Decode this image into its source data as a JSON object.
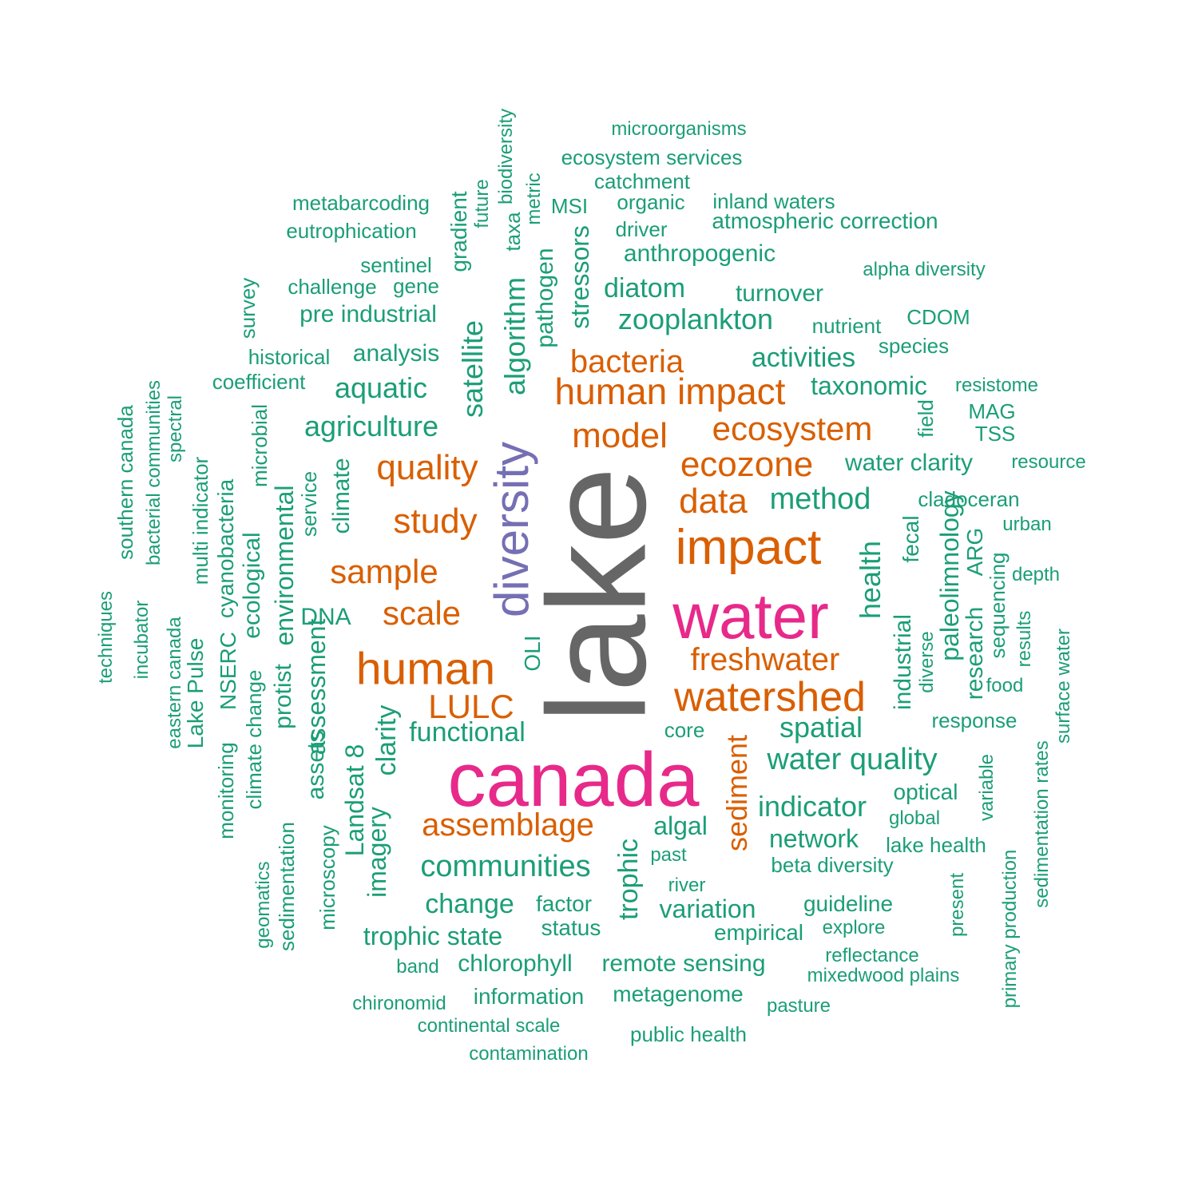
{
  "colors": {
    "lake": "#666666",
    "pink": "#e7298a",
    "purple": "#7570b3",
    "orange": "#d95f02",
    "green": "#1b9e77"
  },
  "words": [
    {
      "text": "lake",
      "color": "lake"
    },
    {
      "text": "canada",
      "color": "pink"
    },
    {
      "text": "water",
      "color": "pink"
    },
    {
      "text": "diversity",
      "color": "purple"
    },
    {
      "text": "impact",
      "color": "orange"
    },
    {
      "text": "human",
      "color": "orange"
    },
    {
      "text": "watershed",
      "color": "orange"
    },
    {
      "text": "human impact",
      "color": "orange"
    },
    {
      "text": "ecozone",
      "color": "orange"
    },
    {
      "text": "data",
      "color": "orange"
    },
    {
      "text": "model",
      "color": "orange"
    },
    {
      "text": "ecosystem",
      "color": "orange"
    },
    {
      "text": "bacteria",
      "color": "orange"
    },
    {
      "text": "quality",
      "color": "orange"
    },
    {
      "text": "study",
      "color": "orange"
    },
    {
      "text": "sample",
      "color": "orange"
    },
    {
      "text": "scale",
      "color": "orange"
    },
    {
      "text": "freshwater",
      "color": "orange"
    },
    {
      "text": "LULC",
      "color": "orange"
    },
    {
      "text": "assemblage",
      "color": "orange"
    },
    {
      "text": "sediment",
      "color": "orange"
    },
    {
      "text": "microorganisms",
      "color": "green"
    },
    {
      "text": "ecosystem services",
      "color": "green"
    },
    {
      "text": "catchment",
      "color": "green"
    },
    {
      "text": "metabarcoding",
      "color": "green"
    },
    {
      "text": "organic",
      "color": "green"
    },
    {
      "text": "inland waters",
      "color": "green"
    },
    {
      "text": "MSI",
      "color": "green"
    },
    {
      "text": "eutrophication",
      "color": "green"
    },
    {
      "text": "driver",
      "color": "green"
    },
    {
      "text": "atmospheric correction",
      "color": "green"
    },
    {
      "text": "anthropogenic",
      "color": "green"
    },
    {
      "text": "sentinel",
      "color": "green"
    },
    {
      "text": "alpha diversity",
      "color": "green"
    },
    {
      "text": "challenge",
      "color": "green"
    },
    {
      "text": "gene",
      "color": "green"
    },
    {
      "text": "diatom",
      "color": "green"
    },
    {
      "text": "turnover",
      "color": "green"
    },
    {
      "text": "pre industrial",
      "color": "green"
    },
    {
      "text": "CDOM",
      "color": "green"
    },
    {
      "text": "zooplankton",
      "color": "green"
    },
    {
      "text": "nutrient",
      "color": "green"
    },
    {
      "text": "species",
      "color": "green"
    },
    {
      "text": "historical",
      "color": "green"
    },
    {
      "text": "analysis",
      "color": "green"
    },
    {
      "text": "activities",
      "color": "green"
    },
    {
      "text": "coefficient",
      "color": "green"
    },
    {
      "text": "aquatic",
      "color": "green"
    },
    {
      "text": "taxonomic",
      "color": "green"
    },
    {
      "text": "resistome",
      "color": "green"
    },
    {
      "text": "MAG",
      "color": "green"
    },
    {
      "text": "agriculture",
      "color": "green"
    },
    {
      "text": "TSS",
      "color": "green"
    },
    {
      "text": "water clarity",
      "color": "green"
    },
    {
      "text": "resource",
      "color": "green"
    },
    {
      "text": "method",
      "color": "green"
    },
    {
      "text": "cladoceran",
      "color": "green"
    },
    {
      "text": "urban",
      "color": "green"
    },
    {
      "text": "depth",
      "color": "green"
    },
    {
      "text": "DNA",
      "color": "green"
    },
    {
      "text": "functional",
      "color": "green"
    },
    {
      "text": "core",
      "color": "green"
    },
    {
      "text": "spatial",
      "color": "green"
    },
    {
      "text": "response",
      "color": "green"
    },
    {
      "text": "food",
      "color": "green"
    },
    {
      "text": "water quality",
      "color": "green"
    },
    {
      "text": "optical",
      "color": "green"
    },
    {
      "text": "indicator",
      "color": "green"
    },
    {
      "text": "global",
      "color": "green"
    },
    {
      "text": "algal",
      "color": "green"
    },
    {
      "text": "network",
      "color": "green"
    },
    {
      "text": "lake health",
      "color": "green"
    },
    {
      "text": "past",
      "color": "green"
    },
    {
      "text": "communities",
      "color": "green"
    },
    {
      "text": "beta diversity",
      "color": "green"
    },
    {
      "text": "river",
      "color": "green"
    },
    {
      "text": "change",
      "color": "green"
    },
    {
      "text": "factor",
      "color": "green"
    },
    {
      "text": "guideline",
      "color": "green"
    },
    {
      "text": "variation",
      "color": "green"
    },
    {
      "text": "status",
      "color": "green"
    },
    {
      "text": "explore",
      "color": "green"
    },
    {
      "text": "trophic state",
      "color": "green"
    },
    {
      "text": "empirical",
      "color": "green"
    },
    {
      "text": "chlorophyll",
      "color": "green"
    },
    {
      "text": "remote sensing",
      "color": "green"
    },
    {
      "text": "reflectance",
      "color": "green"
    },
    {
      "text": "band",
      "color": "green"
    },
    {
      "text": "mixedwood plains",
      "color": "green"
    },
    {
      "text": "information",
      "color": "green"
    },
    {
      "text": "metagenome",
      "color": "green"
    },
    {
      "text": "chironomid",
      "color": "green"
    },
    {
      "text": "pasture",
      "color": "green"
    },
    {
      "text": "continental scale",
      "color": "green"
    },
    {
      "text": "public health",
      "color": "green"
    },
    {
      "text": "contamination",
      "color": "green"
    },
    {
      "text": "biodiversity",
      "color": "green"
    },
    {
      "text": "future",
      "color": "green"
    },
    {
      "text": "metric",
      "color": "green"
    },
    {
      "text": "taxa",
      "color": "green"
    },
    {
      "text": "gradient",
      "color": "green"
    },
    {
      "text": "pathogen",
      "color": "green"
    },
    {
      "text": "stressors",
      "color": "green"
    },
    {
      "text": "algorithm",
      "color": "green"
    },
    {
      "text": "satellite",
      "color": "green"
    },
    {
      "text": "survey",
      "color": "green"
    },
    {
      "text": "field",
      "color": "green"
    },
    {
      "text": "bacterial communities",
      "color": "green"
    },
    {
      "text": "southern canada",
      "color": "green"
    },
    {
      "text": "spectral",
      "color": "green"
    },
    {
      "text": "microbial",
      "color": "green"
    },
    {
      "text": "multi indicator",
      "color": "green"
    },
    {
      "text": "cyanobacteria",
      "color": "green"
    },
    {
      "text": "environmental",
      "color": "green"
    },
    {
      "text": "service",
      "color": "green"
    },
    {
      "text": "climate",
      "color": "green"
    },
    {
      "text": "ecological",
      "color": "green"
    },
    {
      "text": "health",
      "color": "green"
    },
    {
      "text": "fecal",
      "color": "green"
    },
    {
      "text": "paleolimnology",
      "color": "green"
    },
    {
      "text": "ARG",
      "color": "green"
    },
    {
      "text": "sequencing",
      "color": "green"
    },
    {
      "text": "techniques",
      "color": "green"
    },
    {
      "text": "incubator",
      "color": "green"
    },
    {
      "text": "eastern canada",
      "color": "green"
    },
    {
      "text": "Lake Pulse",
      "color": "green"
    },
    {
      "text": "NSERC",
      "color": "green"
    },
    {
      "text": "climate change",
      "color": "green"
    },
    {
      "text": "monitoring",
      "color": "green"
    },
    {
      "text": "protist",
      "color": "green"
    },
    {
      "text": "assessment",
      "color": "green"
    },
    {
      "text": "OLI",
      "color": "green"
    },
    {
      "text": "industrial",
      "color": "green"
    },
    {
      "text": "diverse",
      "color": "green"
    },
    {
      "text": "research",
      "color": "green"
    },
    {
      "text": "results",
      "color": "green"
    },
    {
      "text": "surface water",
      "color": "green"
    },
    {
      "text": "clarity",
      "color": "green"
    },
    {
      "text": "assets",
      "color": "green"
    },
    {
      "text": "Landsat 8",
      "color": "green"
    },
    {
      "text": "imagery",
      "color": "green"
    },
    {
      "text": "microscopy",
      "color": "green"
    },
    {
      "text": "geomatics",
      "color": "green"
    },
    {
      "text": "sedimentation",
      "color": "green"
    },
    {
      "text": "trophic",
      "color": "green"
    },
    {
      "text": "variable",
      "color": "green"
    },
    {
      "text": "present",
      "color": "green"
    },
    {
      "text": "primary production",
      "color": "green"
    },
    {
      "text": "sedimentation rates",
      "color": "green"
    }
  ]
}
